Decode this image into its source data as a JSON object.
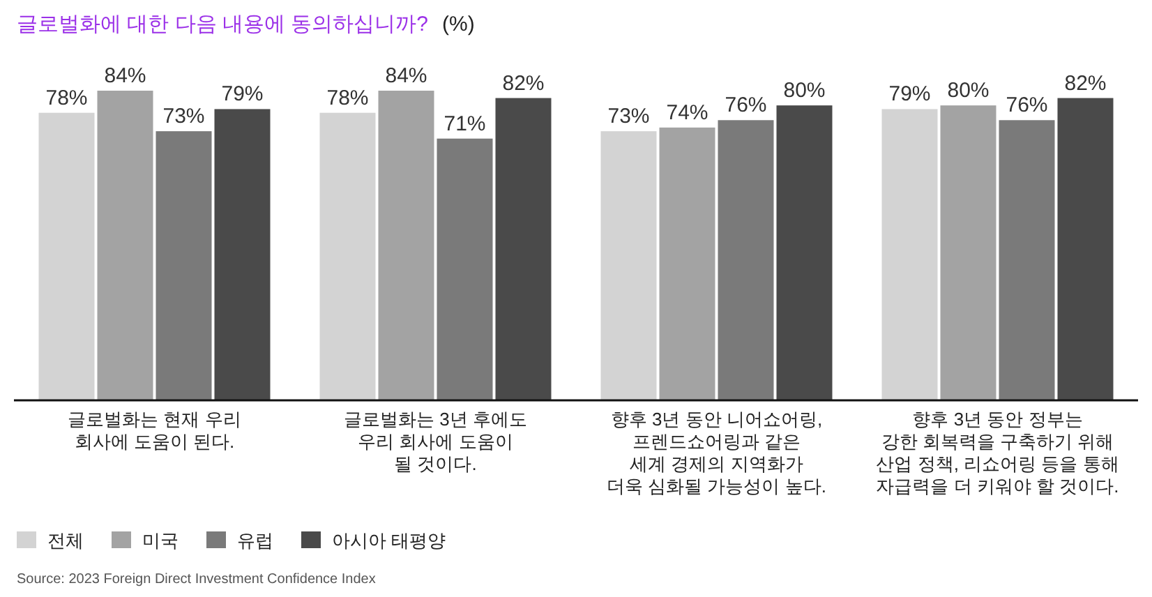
{
  "chart_data": {
    "type": "bar",
    "title": "글로벌화에 대한 다음 내용에 동의하십니까?",
    "subtitle": "(%)",
    "categories": [
      "글로벌화는 현재 우리\n회사에 도움이 된다.",
      "글로벌화는 3년 후에도\n우리 회사에 도움이\n될 것이다.",
      "향후 3년 동안 니어쇼어링,\n프렌드쇼어링과 같은\n세계 경제의 지역화가\n더욱 심화될 가능성이 높다.",
      "향후 3년 동안  정부는\n강한 회복력을 구축하기 위해\n산업 정책, 리쇼어링 등을 통해\n자급력을 더 키워야 할 것이다."
    ],
    "series": [
      {
        "name": "전체",
        "color": "#d3d3d3",
        "values": [
          78,
          78,
          73,
          79
        ],
        "value_labels": [
          "78%",
          "78%",
          "73%",
          "79%"
        ]
      },
      {
        "name": "미국",
        "color": "#a3a3a3",
        "values": [
          84,
          84,
          74,
          80
        ],
        "value_labels": [
          "84%",
          "84%",
          "74%",
          "80%"
        ]
      },
      {
        "name": "유럽",
        "color": "#7a7a7a",
        "values": [
          73,
          71,
          76,
          76
        ],
        "value_labels": [
          "73%",
          "71%",
          "76%",
          "76%"
        ]
      },
      {
        "name": "아시아 태평양",
        "color": "#4a4a4a",
        "values": [
          79,
          82,
          80,
          82
        ],
        "value_labels": [
          "79%",
          "82%",
          "80%",
          "82%"
        ]
      }
    ],
    "grid": false,
    "legend": "bottom left",
    "annotations": [
      "Source: 2023 Foreign Direct Investment Confidence Index"
    ]
  }
}
